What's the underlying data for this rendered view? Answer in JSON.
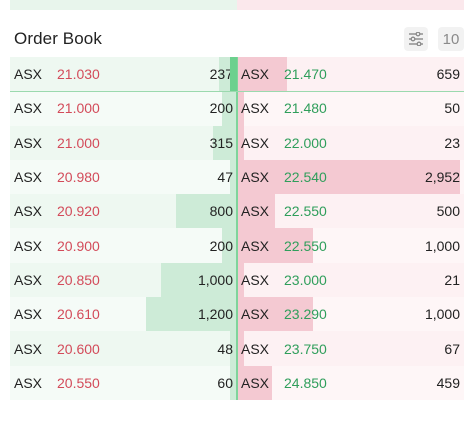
{
  "header": {
    "title": "Order Book",
    "depth_label": "10",
    "filter_icon": "sliders-icon"
  },
  "colors": {
    "bid_price": "#d34b5a",
    "ask_price": "#2f9e5b",
    "bid_bar": "#cdebd7",
    "ask_bar": "#f4c9d2"
  },
  "rows": [
    {
      "bid": {
        "symbol": "ASX",
        "price": "21.030",
        "qty": "237"
      },
      "ask": {
        "symbol": "ASX",
        "price": "21.470",
        "qty": "659"
      }
    },
    {
      "bid": {
        "symbol": "ASX",
        "price": "21.000",
        "qty": "200"
      },
      "ask": {
        "symbol": "ASX",
        "price": "21.480",
        "qty": "50"
      }
    },
    {
      "bid": {
        "symbol": "ASX",
        "price": "21.000",
        "qty": "315"
      },
      "ask": {
        "symbol": "ASX",
        "price": "22.000",
        "qty": "23"
      }
    },
    {
      "bid": {
        "symbol": "ASX",
        "price": "20.980",
        "qty": "47"
      },
      "ask": {
        "symbol": "ASX",
        "price": "22.540",
        "qty": "2,952"
      }
    },
    {
      "bid": {
        "symbol": "ASX",
        "price": "20.920",
        "qty": "800"
      },
      "ask": {
        "symbol": "ASX",
        "price": "22.550",
        "qty": "500"
      }
    },
    {
      "bid": {
        "symbol": "ASX",
        "price": "20.900",
        "qty": "200"
      },
      "ask": {
        "symbol": "ASX",
        "price": "22.550",
        "qty": "1,000"
      }
    },
    {
      "bid": {
        "symbol": "ASX",
        "price": "20.850",
        "qty": "1,000"
      },
      "ask": {
        "symbol": "ASX",
        "price": "23.000",
        "qty": "21"
      }
    },
    {
      "bid": {
        "symbol": "ASX",
        "price": "20.610",
        "qty": "1,200"
      },
      "ask": {
        "symbol": "ASX",
        "price": "23.290",
        "qty": "1,000"
      }
    },
    {
      "bid": {
        "symbol": "ASX",
        "price": "20.600",
        "qty": "48"
      },
      "ask": {
        "symbol": "ASX",
        "price": "23.750",
        "qty": "67"
      }
    },
    {
      "bid": {
        "symbol": "ASX",
        "price": "20.550",
        "qty": "60"
      },
      "ask": {
        "symbol": "ASX",
        "price": "24.850",
        "qty": "459"
      }
    }
  ]
}
